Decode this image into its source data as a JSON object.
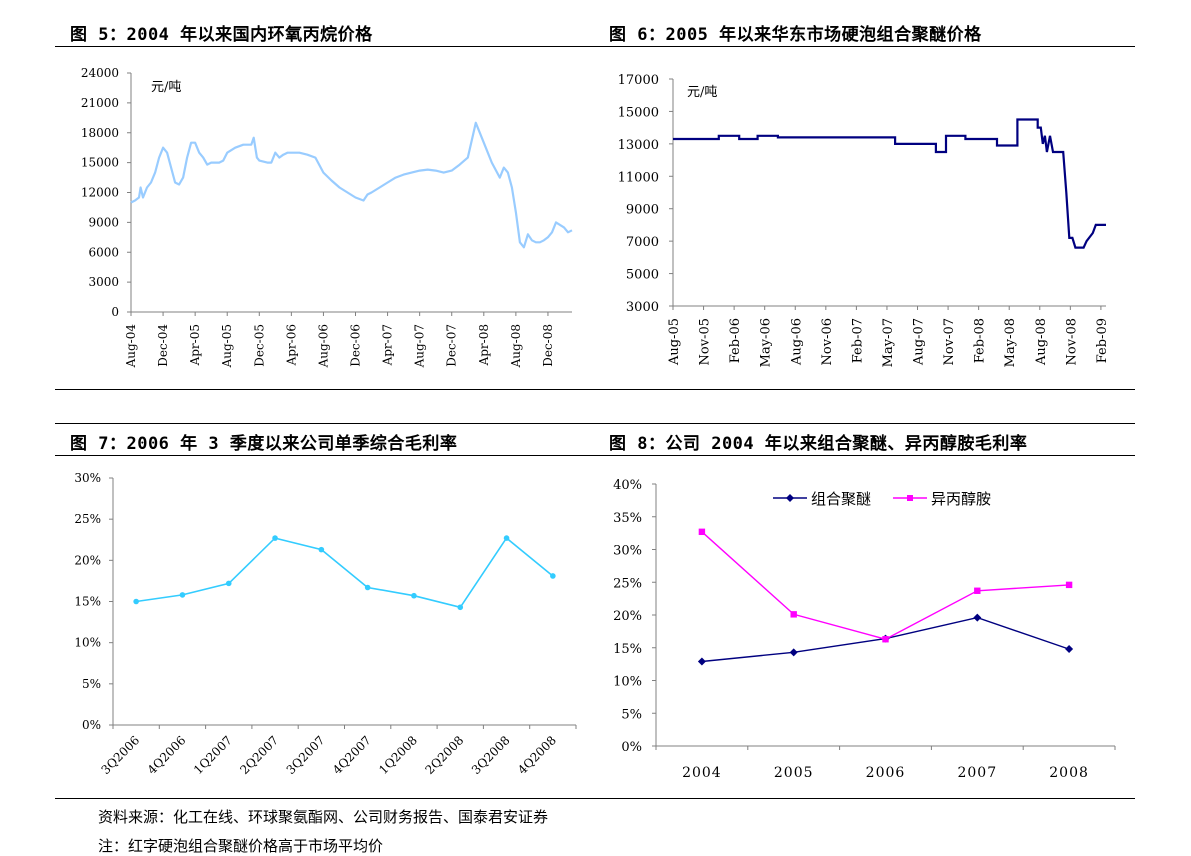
{
  "figures": {
    "fig5_title": "图 5：2004 年以来国内环氧丙烷价格",
    "fig6_title": "图 6：2005 年以来华东市场硬泡组合聚醚价格",
    "fig7_title": "图 7：2006 年 3 季度以来公司单季综合毛利率",
    "fig8_title": "图 8：公司 2004 年以来组合聚醚、异丙醇胺毛利率"
  },
  "footer": {
    "source": "资料来源：化工在线、环球聚氨酯网、公司财务报告、国泰君安证券",
    "note": "注：红字硬泡组合聚醚价格高于市场平均价"
  },
  "chart_data": [
    {
      "id": "fig5",
      "type": "line",
      "title": "图 5：2004 年以来国内环氧丙烷价格",
      "ylabel": "元/吨",
      "ylim": [
        0,
        24000
      ],
      "yticks": [
        0,
        3000,
        6000,
        9000,
        12000,
        15000,
        18000,
        21000,
        24000
      ],
      "x_tick_labels": [
        "Aug-04",
        "Dec-04",
        "Apr-05",
        "Aug-05",
        "Dec-05",
        "Apr-06",
        "Aug-06",
        "Dec-06",
        "Apr-07",
        "Aug-07",
        "Dec-07",
        "Apr-08",
        "Aug-08",
        "Dec-08"
      ],
      "x_range_months": [
        0,
        55
      ],
      "color": "#99CCFF",
      "series": [
        {
          "x": [
            0,
            0.5,
            1,
            1.2,
            1.5,
            2,
            2.5,
            3,
            3.5,
            4,
            4.5,
            5,
            5.5,
            6,
            6.5,
            7,
            7.5,
            8,
            8.5,
            9,
            9.5,
            10,
            10.5,
            11,
            11.5,
            12,
            13,
            14,
            15,
            15.3,
            15.7,
            16,
            17,
            17.5,
            18,
            18.5,
            19,
            19.5,
            20,
            21,
            22,
            23,
            24,
            25,
            26,
            27,
            28,
            29,
            29.5,
            30,
            31,
            32,
            33,
            34,
            35,
            36,
            37,
            38,
            39,
            40,
            41,
            42,
            43,
            44,
            45,
            46,
            46.5,
            47,
            47.5,
            48,
            48.5,
            49,
            49.5,
            50,
            50.5,
            51,
            51.5,
            52,
            52.5,
            53,
            54,
            54.5,
            55
          ],
          "y": [
            11000,
            11200,
            11500,
            12500,
            11500,
            12500,
            13000,
            14000,
            15500,
            16500,
            16000,
            14500,
            13000,
            12800,
            13500,
            15500,
            17000,
            17000,
            16000,
            15500,
            14800,
            15000,
            15000,
            15000,
            15200,
            16000,
            16500,
            16800,
            16800,
            17500,
            15500,
            15200,
            15000,
            15000,
            16000,
            15500,
            15800,
            16000,
            16000,
            16000,
            15800,
            15500,
            14000,
            13200,
            12500,
            12000,
            11500,
            11200,
            11800,
            12000,
            12500,
            13000,
            13500,
            13800,
            14000,
            14200,
            14300,
            14200,
            14000,
            14200,
            14800,
            15500,
            19000,
            17000,
            15000,
            13500,
            14500,
            14000,
            12500,
            10000,
            7000,
            6500,
            7800,
            7200,
            7000,
            7000,
            7200,
            7500,
            8000,
            9000,
            8500,
            8000,
            8200
          ]
        }
      ]
    },
    {
      "id": "fig6",
      "type": "line",
      "title": "图 6：2005 年以来华东市场硬泡组合聚醚价格",
      "ylabel": "元/吨",
      "ylim": [
        3000,
        17000
      ],
      "yticks": [
        3000,
        5000,
        7000,
        9000,
        11000,
        13000,
        15000,
        17000
      ],
      "x_tick_labels": [
        "Aug-05",
        "Nov-05",
        "Feb-06",
        "May-06",
        "Aug-06",
        "Nov-06",
        "Feb-07",
        "May-07",
        "Aug-07",
        "Nov-07",
        "Feb-08",
        "May-08",
        "Aug-08",
        "Nov-08",
        "Feb-09"
      ],
      "x_range_months": [
        0,
        42.5
      ],
      "color": "#000080",
      "series": [
        {
          "x": [
            0,
            4.5,
            4.5,
            6.5,
            6.5,
            8.3,
            8.3,
            10.3,
            10.3,
            21.8,
            21.8,
            25.8,
            25.8,
            26.8,
            26.8,
            28.7,
            28.7,
            31.8,
            31.8,
            33.8,
            33.8,
            35.8,
            35.8,
            36.1,
            36.3,
            36.5,
            36.7,
            37,
            37.3,
            37.5,
            38.3,
            38.6,
            38.9,
            39.2,
            39.5,
            40.3,
            40.6,
            41.2,
            41.5,
            42.5
          ],
          "y": [
            13300,
            13300,
            13500,
            13500,
            13300,
            13300,
            13500,
            13500,
            13400,
            13400,
            13000,
            13000,
            12500,
            12500,
            13500,
            13500,
            13300,
            13300,
            12900,
            12900,
            14500,
            14500,
            14000,
            14000,
            13000,
            13500,
            12500,
            13500,
            12500,
            12500,
            12500,
            10000,
            7200,
            7200,
            6600,
            6600,
            7000,
            7500,
            8000,
            8000
          ]
        }
      ]
    },
    {
      "id": "fig7",
      "type": "line",
      "title": "图 7：2006 年 3 季度以来公司单季综合毛利率",
      "ylim": [
        0,
        30
      ],
      "ytick_labels": [
        "0%",
        "5%",
        "10%",
        "15%",
        "20%",
        "25%",
        "30%"
      ],
      "categories": [
        "3Q2006",
        "4Q2006",
        "1Q2007",
        "2Q2007",
        "3Q2007",
        "4Q2007",
        "1Q2008",
        "2Q2008",
        "3Q2008",
        "4Q2008"
      ],
      "color": "#33CCFF",
      "series": [
        {
          "values": [
            15.0,
            15.8,
            17.2,
            22.7,
            21.3,
            16.7,
            15.7,
            14.3,
            22.7,
            18.1
          ]
        }
      ]
    },
    {
      "id": "fig8",
      "type": "line",
      "title": "图 8：公司 2004 年以来组合聚醚、异丙醇胺毛利率",
      "ylim": [
        0,
        40
      ],
      "ytick_labels": [
        "0%",
        "5%",
        "10%",
        "15%",
        "20%",
        "25%",
        "30%",
        "35%",
        "40%"
      ],
      "categories": [
        "2004",
        "2005",
        "2006",
        "2007",
        "2008"
      ],
      "legend_position": "top",
      "series": [
        {
          "name": "组合聚醚",
          "color": "#000080",
          "marker": "diamond",
          "values": [
            12.9,
            14.3,
            16.4,
            19.6,
            14.8
          ]
        },
        {
          "name": "异丙醇胺",
          "color": "#FF00FF",
          "marker": "square",
          "values": [
            32.7,
            20.1,
            16.3,
            23.7,
            24.6
          ]
        }
      ]
    }
  ]
}
